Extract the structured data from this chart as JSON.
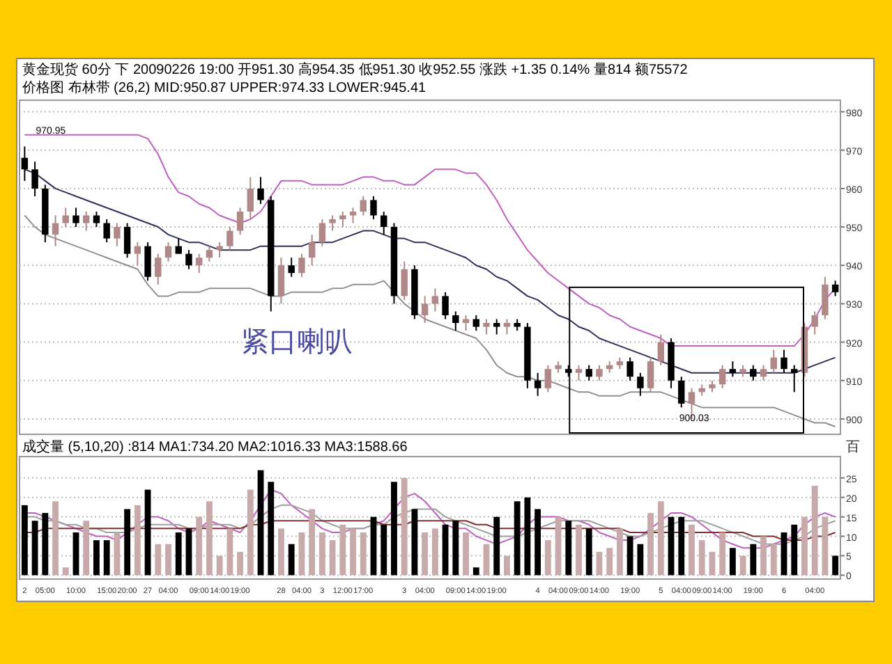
{
  "chart_data": [
    {
      "type": "candlestick",
      "title": "黄金现货 60分 下 20090226 19:00 开951.30 高954.35 低951.30 收952.55 涨跌 +1.35 0.14% 量814 额75572",
      "subtitle": "价格图 布林带 (26,2) MID:950.87 UPPER:974.33 LOWER:945.41",
      "categories": [
        null,
        null,
        null,
        null,
        null,
        null,
        null,
        null,
        null,
        null,
        null,
        null,
        null,
        null,
        null,
        null,
        null,
        null,
        null,
        null,
        null,
        null,
        null,
        null,
        null,
        null,
        null,
        null,
        null,
        null,
        null,
        null,
        null,
        null,
        null,
        null,
        null,
        null,
        null,
        null,
        null,
        null,
        null,
        null,
        null,
        null,
        null,
        null,
        null,
        null,
        null,
        null,
        null,
        null,
        null,
        null,
        null,
        null,
        null,
        null,
        null,
        null,
        null,
        null,
        null,
        null,
        null,
        null,
        null,
        null,
        null,
        null,
        null,
        null,
        null,
        null,
        null,
        null,
        null,
        null
      ],
      "ohlc": [
        [
          968,
          970.95,
          962,
          965
        ],
        [
          965,
          967,
          958,
          960
        ],
        [
          960,
          961,
          946,
          948
        ],
        [
          948,
          953,
          945,
          951
        ],
        [
          951,
          955,
          950,
          953
        ],
        [
          953,
          955,
          950,
          951
        ],
        [
          951,
          954,
          949,
          953
        ],
        [
          953,
          954,
          950,
          951
        ],
        [
          951,
          952,
          946,
          947
        ],
        [
          947,
          951,
          945,
          950
        ],
        [
          950,
          951,
          942,
          943
        ],
        [
          943,
          946,
          940,
          945
        ],
        [
          945,
          946,
          936,
          937
        ],
        [
          937,
          943,
          935,
          942
        ],
        [
          942,
          946,
          941,
          945
        ],
        [
          945,
          947,
          943,
          943
        ],
        [
          943,
          944,
          939,
          940
        ],
        [
          940,
          943,
          938,
          942
        ],
        [
          942,
          945,
          941,
          944
        ],
        [
          944,
          946,
          942,
          945
        ],
        [
          945,
          950,
          944,
          949
        ],
        [
          949,
          955,
          948,
          954
        ],
        [
          954,
          963,
          952,
          960
        ],
        [
          960,
          963,
          956,
          957
        ],
        [
          957,
          958,
          928,
          932
        ],
        [
          932,
          942,
          930,
          940
        ],
        [
          940,
          942,
          937,
          938
        ],
        [
          938,
          943,
          937,
          942
        ],
        [
          942,
          948,
          940,
          946
        ],
        [
          946,
          952,
          945,
          951
        ],
        [
          951,
          953,
          949,
          952
        ],
        [
          952,
          954,
          950,
          953
        ],
        [
          953,
          955,
          951,
          954
        ],
        [
          954,
          958,
          953,
          957
        ],
        [
          957,
          958,
          952,
          953
        ],
        [
          953,
          954,
          948,
          950
        ],
        [
          950,
          951,
          930,
          932
        ],
        [
          932,
          941,
          931,
          939
        ],
        [
          939,
          940,
          926,
          927
        ],
        [
          927,
          932,
          925,
          930
        ],
        [
          930,
          934,
          928,
          932
        ],
        [
          932,
          933,
          926,
          927
        ],
        [
          927,
          928,
          923,
          925
        ],
        [
          925,
          927,
          923,
          926
        ],
        [
          926,
          927,
          923,
          924
        ],
        [
          924,
          926,
          922,
          925
        ],
        [
          925,
          926,
          922,
          924
        ],
        [
          924,
          926,
          922,
          925
        ],
        [
          925,
          926,
          923,
          924
        ],
        [
          924,
          925,
          908,
          910
        ],
        [
          910,
          912,
          906,
          908
        ],
        [
          908,
          914,
          907,
          913
        ],
        [
          913,
          915,
          912,
          914
        ],
        [
          913,
          914,
          911,
          912
        ],
        [
          912,
          914,
          910,
          913
        ],
        [
          913,
          914,
          910,
          911
        ],
        [
          911,
          914,
          910,
          913
        ],
        [
          913,
          915,
          912,
          914
        ],
        [
          914,
          916,
          913,
          915
        ],
        [
          915,
          916,
          910,
          911
        ],
        [
          911,
          912,
          906,
          908
        ],
        [
          908,
          916,
          907,
          915
        ],
        [
          915,
          922,
          914,
          920
        ],
        [
          920,
          921,
          908,
          910
        ],
        [
          910,
          911,
          903,
          904
        ],
        [
          904,
          908,
          900.03,
          907
        ],
        [
          907,
          909,
          906,
          908
        ],
        [
          908,
          910,
          907,
          909
        ],
        [
          909,
          914,
          908,
          913
        ],
        [
          913,
          915,
          911,
          912
        ],
        [
          912,
          914,
          911,
          913
        ],
        [
          913,
          914,
          910,
          911
        ],
        [
          911,
          914,
          910,
          913
        ],
        [
          913,
          918,
          912,
          916
        ],
        [
          916,
          918,
          912,
          913
        ],
        [
          913,
          914,
          907,
          912
        ],
        [
          912,
          925,
          911,
          924
        ],
        [
          924,
          928,
          922,
          927
        ],
        [
          927,
          937,
          926,
          935
        ],
        [
          935,
          936,
          932,
          933
        ]
      ],
      "colors": [
        "#000000",
        "#000000",
        "#000000",
        "#b08888",
        "#b08888",
        "#000000",
        "#b08888",
        "#000000",
        "#000000",
        "#b08888",
        "#000000",
        "#b08888",
        "#000000",
        "#b08888",
        "#b08888",
        "#000000",
        "#000000",
        "#b08888",
        "#b08888",
        "#b08888",
        "#b08888",
        "#b08888",
        "#b08888",
        "#000000",
        "#000000",
        "#b08888",
        "#000000",
        "#b08888",
        "#b08888",
        "#b08888",
        "#b08888",
        "#b08888",
        "#b08888",
        "#b08888",
        "#000000",
        "#000000",
        "#000000",
        "#b08888",
        "#000000",
        "#b08888",
        "#b08888",
        "#000000",
        "#000000",
        "#b08888",
        "#000000",
        "#b08888",
        "#000000",
        "#b08888",
        "#000000",
        "#000000",
        "#000000",
        "#b08888",
        "#b08888",
        "#000000",
        "#b08888",
        "#000000",
        "#b08888",
        "#b08888",
        "#b08888",
        "#000000",
        "#000000",
        "#b08888",
        "#b08888",
        "#000000",
        "#000000",
        "#b08888",
        "#b08888",
        "#b08888",
        "#b08888",
        "#000000",
        "#b08888",
        "#000000",
        "#b08888",
        "#b08888",
        "#000000",
        "#000000",
        "#b08888",
        "#b08888",
        "#b08888",
        "#000000"
      ],
      "series": [
        {
          "type": "line",
          "color": "#c060c0",
          "values": [
            974,
            974,
            974,
            974,
            974,
            974,
            974,
            974,
            974,
            974,
            974,
            974,
            973,
            969,
            963,
            959,
            958,
            956,
            955,
            953,
            952,
            951,
            952,
            954,
            958,
            962,
            962,
            962,
            961,
            961,
            961,
            961,
            962,
            963,
            963,
            962,
            962,
            961,
            961,
            963,
            965,
            965,
            965,
            964,
            964,
            961,
            957,
            952,
            948,
            944,
            941,
            938,
            936,
            934,
            932,
            930,
            929,
            927,
            926,
            924,
            923,
            922,
            921,
            919,
            919,
            919,
            919,
            919,
            919,
            919,
            919,
            919,
            919,
            919,
            919,
            919,
            922,
            926,
            931,
            934
          ]
        },
        {
          "type": "line",
          "color": "#30305a",
          "values": [
            965,
            964,
            962,
            960,
            959,
            958,
            957,
            956,
            955,
            954,
            953,
            952,
            951,
            950,
            948,
            947,
            946,
            946,
            945,
            944,
            944,
            944,
            944,
            945,
            945,
            945,
            945,
            945,
            946,
            946,
            946,
            947,
            948,
            949,
            949,
            948,
            947,
            947,
            946,
            946,
            945,
            944,
            943,
            942,
            940,
            939,
            937,
            936,
            934,
            932,
            931,
            929,
            927,
            926,
            924,
            923,
            921,
            920,
            919,
            918,
            917,
            916,
            915,
            914,
            913,
            912,
            912,
            912,
            912,
            912,
            912,
            912,
            912,
            912,
            912,
            912,
            913,
            914,
            915,
            916
          ]
        },
        {
          "type": "line",
          "color": "#909090",
          "values": [
            953,
            950,
            948,
            947,
            946,
            945,
            944,
            943,
            942,
            941,
            940,
            939,
            935,
            932,
            932,
            933,
            933,
            933,
            934,
            934,
            934,
            934,
            934,
            933,
            932,
            932,
            933,
            933,
            933,
            933,
            934,
            934,
            935,
            935,
            935,
            936,
            933,
            930,
            928,
            926,
            925,
            924,
            923,
            922,
            921,
            918,
            914,
            912,
            911,
            911,
            910,
            910,
            909,
            908,
            907,
            907,
            906,
            906,
            906,
            907,
            907,
            907,
            907,
            906,
            905,
            904,
            903,
            903,
            903,
            903,
            903,
            903,
            903,
            903,
            902,
            901,
            900,
            899,
            899,
            898
          ]
        }
      ],
      "annotations": [
        "紧口喇叭",
        "970.95",
        "900.03"
      ],
      "ylim": [
        896,
        983
      ],
      "yticks": [
        900,
        910,
        920,
        930,
        940,
        950,
        960,
        970,
        980
      ],
      "grid": "y",
      "tick_labels": "y"
    },
    {
      "type": "bar",
      "subtitle": "成交量 (5,10,20) :814 MA1:734.20 MA2:1016.33 MA3:1588.66",
      "ylabel": "百",
      "categories": [
        "2",
        null,
        "05:00",
        null,
        null,
        "10:00",
        null,
        null,
        "15:00",
        null,
        "20:00",
        null,
        "27",
        null,
        "04:00",
        null,
        null,
        "09:00",
        null,
        "14:00",
        null,
        "19:00",
        null,
        null,
        null,
        "28",
        null,
        "04:00",
        null,
        "3",
        null,
        "12:00",
        null,
        "17:00",
        null,
        null,
        null,
        "3",
        null,
        "04:00",
        null,
        null,
        "09:00",
        null,
        "14:00",
        null,
        "19:00",
        null,
        null,
        null,
        "4",
        null,
        "04:00",
        null,
        "09:00",
        null,
        "14:00",
        null,
        null,
        "19:00",
        null,
        null,
        "5",
        null,
        "04:00",
        null,
        "09:00",
        null,
        "14:00",
        null,
        null,
        "19:00",
        null,
        null,
        "6",
        null,
        null,
        "04:00",
        null,
        null
      ],
      "values": [
        18,
        14,
        16,
        19,
        2,
        11,
        14,
        9,
        9,
        11,
        17,
        18,
        22,
        8,
        8,
        11,
        12,
        15,
        19,
        5,
        12,
        6,
        22,
        27,
        24,
        12,
        8,
        11,
        17,
        11,
        9,
        13,
        12,
        11,
        15,
        13,
        24,
        25,
        17,
        11,
        12,
        13,
        14,
        11,
        2,
        8,
        15,
        5,
        19,
        20,
        17,
        9,
        15,
        14,
        13,
        12,
        6,
        7,
        12,
        10,
        8,
        16,
        19,
        15,
        15,
        13,
        9,
        6,
        11,
        7,
        5,
        8,
        10,
        8,
        11,
        13,
        15,
        23,
        15,
        5
      ],
      "colors": [
        "#000000",
        "#000000",
        "#000000",
        "#c8aaaa",
        "#c8aaaa",
        "#000000",
        "#c8aaaa",
        "#000000",
        "#000000",
        "#c8aaaa",
        "#000000",
        "#c8aaaa",
        "#000000",
        "#c8aaaa",
        "#c8aaaa",
        "#000000",
        "#000000",
        "#c8aaaa",
        "#c8aaaa",
        "#c8aaaa",
        "#c8aaaa",
        "#c8aaaa",
        "#c8aaaa",
        "#000000",
        "#000000",
        "#c8aaaa",
        "#000000",
        "#c8aaaa",
        "#c8aaaa",
        "#c8aaaa",
        "#c8aaaa",
        "#c8aaaa",
        "#c8aaaa",
        "#c8aaaa",
        "#000000",
        "#000000",
        "#000000",
        "#c8aaaa",
        "#000000",
        "#c8aaaa",
        "#c8aaaa",
        "#000000",
        "#000000",
        "#c8aaaa",
        "#000000",
        "#c8aaaa",
        "#000000",
        "#c8aaaa",
        "#000000",
        "#000000",
        "#000000",
        "#c8aaaa",
        "#c8aaaa",
        "#000000",
        "#c8aaaa",
        "#000000",
        "#c8aaaa",
        "#c8aaaa",
        "#c8aaaa",
        "#000000",
        "#000000",
        "#c8aaaa",
        "#c8aaaa",
        "#000000",
        "#000000",
        "#c8aaaa",
        "#c8aaaa",
        "#c8aaaa",
        "#c8aaaa",
        "#000000",
        "#c8aaaa",
        "#000000",
        "#c8aaaa",
        "#c8aaaa",
        "#000000",
        "#000000",
        "#c8aaaa",
        "#c8aaaa",
        "#c8aaaa",
        "#000000"
      ],
      "series": [
        {
          "type": "line",
          "color": "#c060c0",
          "values": [
            16,
            16,
            15,
            14,
            13,
            12,
            11,
            10,
            10,
            9,
            11,
            13,
            15,
            15,
            14,
            12,
            11,
            12,
            14,
            13,
            12,
            11,
            14,
            18,
            22,
            21,
            18,
            16,
            14,
            12,
            11,
            11,
            12,
            12,
            13,
            14,
            17,
            20,
            21,
            19,
            16,
            13,
            12,
            12,
            10,
            9,
            8,
            9,
            10,
            13,
            15,
            15,
            15,
            14,
            14,
            13,
            11,
            10,
            9,
            9,
            10,
            12,
            14,
            16,
            16,
            15,
            13,
            11,
            9,
            8,
            7,
            7,
            7,
            8,
            9,
            10,
            13,
            15,
            16,
            15
          ]
        },
        {
          "type": "line",
          "color": "#a0a0a0",
          "values": [
            15,
            15,
            14,
            14,
            13,
            13,
            12,
            12,
            11,
            11,
            11,
            12,
            13,
            13,
            13,
            13,
            12,
            12,
            13,
            13,
            13,
            12,
            13,
            15,
            17,
            18,
            18,
            17,
            16,
            14,
            13,
            12,
            12,
            12,
            13,
            13,
            15,
            16,
            17,
            17,
            17,
            15,
            14,
            13,
            12,
            11,
            10,
            10,
            10,
            11,
            12,
            13,
            14,
            14,
            14,
            14,
            13,
            12,
            11,
            10,
            10,
            11,
            12,
            13,
            14,
            14,
            14,
            13,
            12,
            11,
            10,
            9,
            8,
            8,
            8,
            9,
            10,
            12,
            13,
            14
          ]
        },
        {
          "type": "line",
          "color": "#803030",
          "values": [
            11,
            11,
            12,
            12,
            12,
            12,
            12,
            12,
            12,
            12,
            12,
            12,
            12,
            12,
            12,
            12,
            12,
            12,
            12,
            12,
            12,
            12,
            13,
            13,
            14,
            14,
            14,
            14,
            14,
            14,
            14,
            14,
            14,
            14,
            14,
            13,
            13,
            13,
            14,
            14,
            14,
            14,
            14,
            14,
            13,
            13,
            12,
            12,
            12,
            12,
            12,
            12,
            12,
            12,
            12,
            12,
            12,
            12,
            12,
            11,
            11,
            11,
            11,
            11,
            11,
            11,
            11,
            11,
            11,
            11,
            11,
            10,
            10,
            10,
            9,
            9,
            9,
            10,
            10,
            11
          ]
        }
      ],
      "ylim": [
        -1,
        30.5
      ],
      "yticks": [
        0,
        5,
        10,
        15,
        20,
        25
      ],
      "grid": "y"
    }
  ]
}
